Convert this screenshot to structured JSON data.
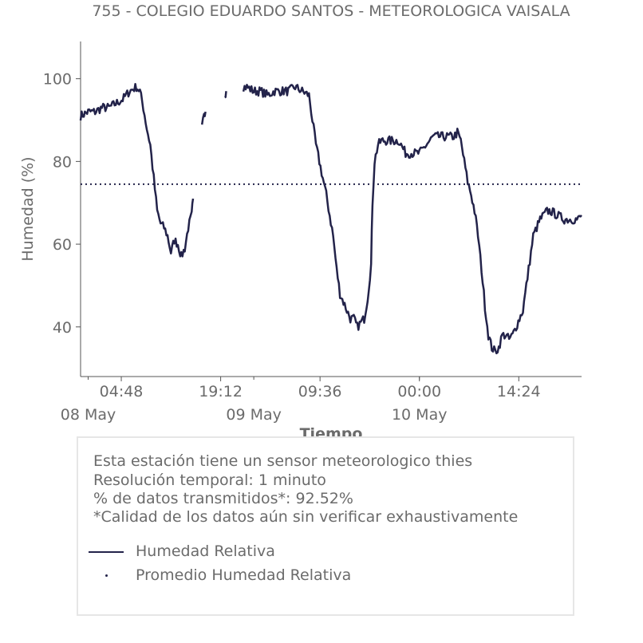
{
  "title": "755 - COLEGIO EDUARDO SANTOS - METEOROLOGICA VAISALA",
  "info": {
    "line1": "Esta estación tiene un sensor meteorologico thies",
    "line2": "Resolución temporal: 1 minuto",
    "line3": "% de datos transmitidos*: 92.52%",
    "line4": "*Calidad de los datos aún sin verificar exhaustivamente"
  },
  "colors": {
    "series": "#23234a",
    "text": "#6b6b6b",
    "axis": "#555555",
    "box_border": "#e6e6e6"
  },
  "chart_data": {
    "type": "line",
    "title": "755 - COLEGIO EDUARDO SANTOS - METEOROLOGICA VAISALA",
    "xlabel": "Tiempo",
    "ylabel": "Humedad (%)",
    "x_unit": "hours since 08 May 00:00",
    "xlim": [
      -1.1,
      71.5
    ],
    "ylim": [
      28,
      109
    ],
    "y_ticks": [
      40,
      60,
      80,
      100
    ],
    "x_ticks": [
      {
        "x": 4.8,
        "label": "04:48"
      },
      {
        "x": 19.2,
        "label": "19:12"
      },
      {
        "x": 33.6,
        "label": "09:36"
      },
      {
        "x": 48.0,
        "label": "00:00"
      },
      {
        "x": 62.4,
        "label": "14:24"
      }
    ],
    "x_minor_ticks": [
      0,
      24,
      48
    ],
    "date_labels": [
      {
        "x": 0,
        "label": "08 May"
      },
      {
        "x": 24,
        "label": "09 May"
      },
      {
        "x": 48,
        "label": "10 May"
      }
    ],
    "grid": false,
    "legend_placement": "bottom",
    "series": [
      {
        "name": "Humedad Relativa",
        "segments": [
          [
            [
              -1.1,
              91
            ],
            [
              0,
              92
            ],
            [
              1,
              92
            ],
            [
              2,
              93
            ],
            [
              3,
              93
            ],
            [
              4,
              94
            ],
            [
              5,
              95
            ],
            [
              6,
              97
            ],
            [
              7,
              98
            ],
            [
              7.5,
              97
            ],
            [
              8,
              93
            ],
            [
              8.5,
              88
            ],
            [
              9,
              84
            ],
            [
              9.5,
              76
            ],
            [
              10,
              68
            ],
            [
              10.5,
              65
            ],
            [
              11,
              64
            ],
            [
              11.5,
              62
            ],
            [
              12,
              58
            ],
            [
              12.5,
              61
            ],
            [
              13,
              60
            ],
            [
              13.5,
              57
            ],
            [
              14,
              59
            ],
            [
              14.5,
              64
            ],
            [
              15,
              67
            ],
            [
              15.2,
              71
            ]
          ],
          [
            [
              16.5,
              88
            ],
            [
              16.8,
              92
            ],
            [
              17,
              92
            ]
          ],
          [
            [
              19.8,
              96
            ],
            [
              20,
              97
            ]
          ],
          [
            [
              22.5,
              98
            ],
            [
              23,
              98
            ],
            [
              24,
              97
            ],
            [
              25,
              97
            ],
            [
              26,
              96
            ],
            [
              27,
              97
            ],
            [
              28,
              97
            ],
            [
              29,
              97
            ],
            [
              30,
              98
            ],
            [
              31,
              97
            ],
            [
              32,
              96
            ],
            [
              32.5,
              90
            ],
            [
              33,
              84
            ],
            [
              33.5,
              80
            ],
            [
              34,
              76
            ],
            [
              34.5,
              72
            ],
            [
              35,
              67
            ],
            [
              35.5,
              62
            ],
            [
              36,
              54
            ],
            [
              36.5,
              48
            ],
            [
              37,
              46
            ],
            [
              37.5,
              44
            ],
            [
              38,
              42
            ],
            [
              38.5,
              42
            ],
            [
              39,
              40
            ],
            [
              39.5,
              41
            ],
            [
              40,
              42
            ],
            [
              40.5,
              47
            ],
            [
              41,
              55
            ],
            [
              41.2,
              70
            ],
            [
              41.5,
              80
            ],
            [
              42,
              84
            ],
            [
              42.5,
              85
            ],
            [
              43,
              85
            ],
            [
              44,
              85
            ],
            [
              45,
              85
            ],
            [
              46,
              82
            ],
            [
              47,
              82
            ],
            [
              48,
              82
            ],
            [
              49,
              84
            ],
            [
              50,
              86
            ],
            [
              51,
              86
            ],
            [
              52,
              86
            ],
            [
              53,
              86
            ],
            [
              53.5,
              87
            ],
            [
              54,
              85
            ],
            [
              54.5,
              80
            ],
            [
              55,
              75
            ],
            [
              55.5,
              72
            ],
            [
              56,
              68
            ],
            [
              56.5,
              62
            ],
            [
              57,
              54
            ],
            [
              57.5,
              45
            ],
            [
              58,
              38
            ],
            [
              58.5,
              35
            ],
            [
              59,
              34
            ],
            [
              59.5,
              35
            ],
            [
              60,
              38
            ],
            [
              60.5,
              38
            ],
            [
              61,
              37
            ],
            [
              61.5,
              38
            ],
            [
              62,
              40
            ],
            [
              62.5,
              42
            ],
            [
              63,
              44
            ],
            [
              63.5,
              50
            ],
            [
              64,
              56
            ],
            [
              64.5,
              62
            ],
            [
              65,
              64
            ],
            [
              65.5,
              66
            ],
            [
              66,
              67
            ],
            [
              66.5,
              68
            ],
            [
              67,
              68
            ],
            [
              68,
              67
            ],
            [
              69,
              66
            ],
            [
              70,
              66
            ],
            [
              71,
              66
            ],
            [
              71.5,
              67
            ]
          ]
        ]
      },
      {
        "name": "Promedio Humedad Relativa",
        "value": 74.5
      }
    ]
  }
}
